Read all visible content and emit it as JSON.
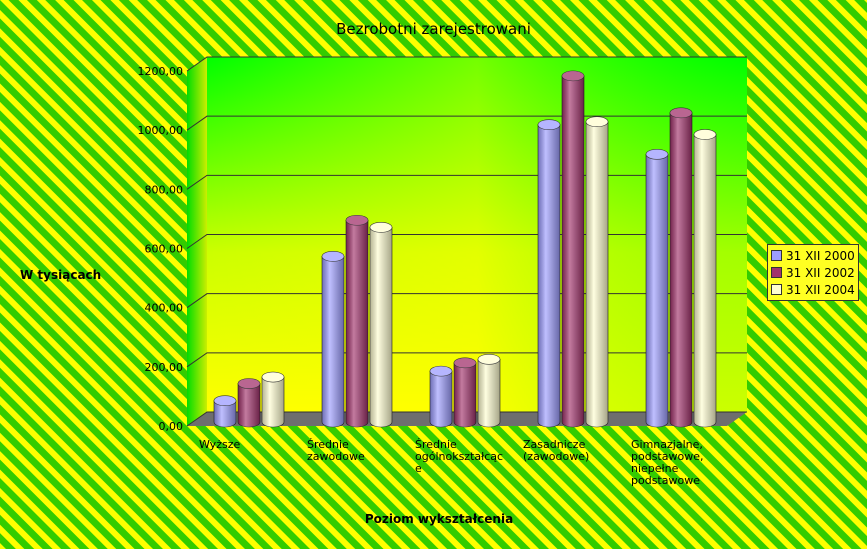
{
  "chart_data": {
    "type": "bar",
    "title": "Bezrobotni zarejestrowani",
    "xlabel": "Poziom wykształcenia",
    "ylabel": "W tysiącach",
    "ylim": [
      0,
      1200
    ],
    "yticks": [
      "0,00",
      "200,00",
      "400,00",
      "600,00",
      "800,00",
      "1000,00",
      "1200,00"
    ],
    "categories": [
      [
        "Wyższe"
      ],
      [
        "Średnie",
        "zawodowe"
      ],
      [
        "Średnie",
        "ogólnokształcąc",
        "e"
      ],
      [
        "Zasadnicze",
        "(zawodowe)"
      ],
      [
        "Gimnazjalne,",
        "podstawowe,",
        "niepełne",
        "podstawowe"
      ]
    ],
    "series": [
      {
        "name": "31 XII 2000",
        "color": "#9d9dff",
        "values": [
          72,
          560,
          172,
          1005,
          905
        ]
      },
      {
        "name": "31 XII 2002",
        "color": "#a2336c",
        "values": [
          130,
          682,
          200,
          1170,
          1045
        ]
      },
      {
        "name": "31 XII 2004",
        "color": "#fffed0",
        "values": [
          152,
          658,
          212,
          1015,
          972
        ]
      }
    ],
    "grid": true,
    "legend_position": "right"
  }
}
